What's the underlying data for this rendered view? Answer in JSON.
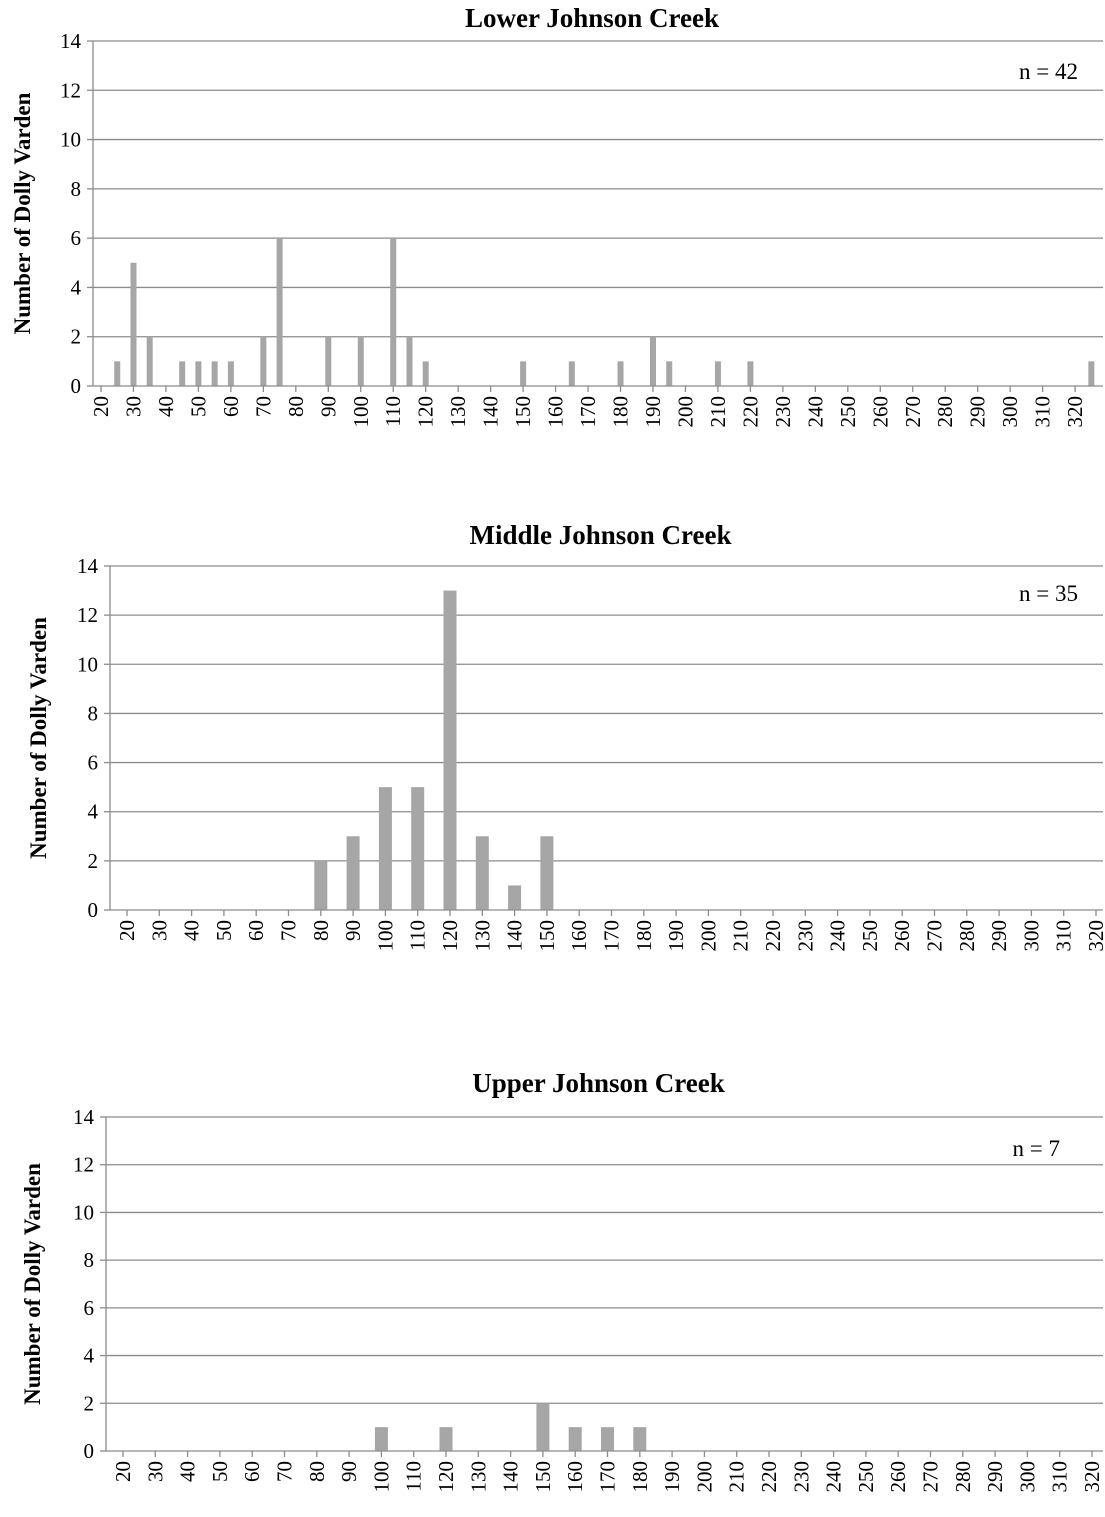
{
  "chart_data": [
    {
      "type": "bar",
      "title": "Lower Johnson Creek",
      "ylabel": "Number of Dolly Varden",
      "xlabel": "",
      "annotation": "n = 42",
      "ylim": [
        0,
        14
      ],
      "yticks": [
        0,
        2,
        4,
        6,
        8,
        10,
        12,
        14
      ],
      "grid": true,
      "bin_width": 5,
      "xrange": [
        20,
        325
      ],
      "xticks": [
        20,
        30,
        40,
        50,
        60,
        70,
        80,
        90,
        100,
        110,
        120,
        130,
        140,
        150,
        160,
        170,
        180,
        190,
        200,
        210,
        220,
        230,
        240,
        250,
        260,
        270,
        280,
        290,
        300,
        310,
        320
      ],
      "x": [
        25,
        30,
        35,
        45,
        50,
        55,
        60,
        70,
        75,
        90,
        100,
        110,
        115,
        120,
        150,
        165,
        180,
        190,
        195,
        210,
        220,
        325
      ],
      "values": [
        1,
        5,
        2,
        1,
        1,
        1,
        1,
        2,
        6,
        2,
        2,
        6,
        2,
        1,
        1,
        1,
        1,
        2,
        1,
        1,
        1,
        1
      ],
      "bar_color": "#a6a6a6"
    },
    {
      "type": "bar",
      "title": "Middle Johnson Creek",
      "ylabel": "Number of Dolly Varden",
      "xlabel": "",
      "annotation": "n = 35",
      "ylim": [
        0,
        14
      ],
      "yticks": [
        0,
        2,
        4,
        6,
        8,
        10,
        12,
        14
      ],
      "grid": true,
      "bin_width": 10,
      "xrange": [
        20,
        320
      ],
      "xticks": [
        20,
        30,
        40,
        50,
        60,
        70,
        80,
        90,
        100,
        110,
        120,
        130,
        140,
        150,
        160,
        170,
        180,
        190,
        200,
        210,
        220,
        230,
        240,
        250,
        260,
        270,
        280,
        290,
        300,
        310,
        320
      ],
      "x": [
        80,
        90,
        100,
        110,
        120,
        130,
        140,
        150
      ],
      "values": [
        2,
        3,
        5,
        5,
        13,
        3,
        1,
        3
      ],
      "bar_color": "#a6a6a6"
    },
    {
      "type": "bar",
      "title": "Upper Johnson Creek",
      "ylabel": "Number of Dolly Varden",
      "xlabel": "",
      "annotation": "n = 7",
      "ylim": [
        0,
        14
      ],
      "yticks": [
        0,
        2,
        4,
        6,
        8,
        10,
        12,
        14
      ],
      "grid": true,
      "bin_width": 10,
      "xrange": [
        20,
        320
      ],
      "xticks": [
        20,
        30,
        40,
        50,
        60,
        70,
        80,
        90,
        100,
        110,
        120,
        130,
        140,
        150,
        160,
        170,
        180,
        190,
        200,
        210,
        220,
        230,
        240,
        250,
        260,
        270,
        280,
        290,
        300,
        310,
        320
      ],
      "x": [
        100,
        120,
        150,
        160,
        170,
        180
      ],
      "values": [
        1,
        1,
        2,
        1,
        1,
        1
      ],
      "bar_color": "#a6a6a6"
    }
  ]
}
